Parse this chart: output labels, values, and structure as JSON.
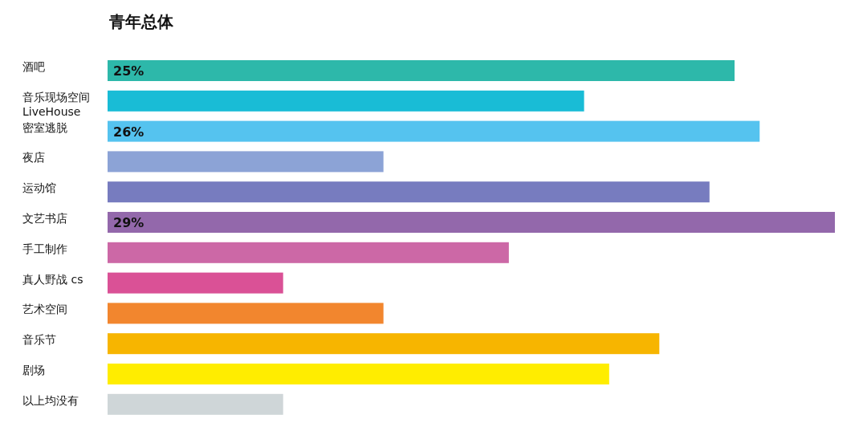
{
  "chart_data": {
    "type": "bar",
    "orientation": "horizontal",
    "title": "青年总体",
    "categories": [
      "酒吧",
      "音乐现场空间 LiveHouse",
      "密室逃脱",
      "夜店",
      "运动馆",
      "文艺书店",
      "手工制作",
      "真人野战 cs",
      "艺术空间",
      "音乐节",
      "剧场",
      "以上均没有"
    ],
    "values": [
      25,
      19,
      26,
      11,
      24,
      29,
      16,
      7,
      11,
      22,
      20,
      7
    ],
    "value_labels": [
      "25%",
      null,
      "26%",
      null,
      null,
      "29%",
      null,
      null,
      null,
      null,
      null,
      null
    ],
    "colors": [
      "#2db8aa",
      "#19bcd6",
      "#55c3ef",
      "#8ca3d6",
      "#777cbf",
      "#9368ab",
      "#cc68a6",
      "#da5196",
      "#f2862e",
      "#f7b500",
      "#ffed00",
      "#cfd6d8"
    ]
  }
}
